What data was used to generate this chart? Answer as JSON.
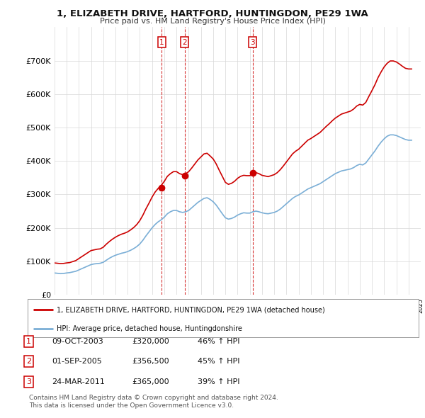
{
  "title": "1, ELIZABETH DRIVE, HARTFORD, HUNTINGDON, PE29 1WA",
  "subtitle": "Price paid vs. HM Land Registry's House Price Index (HPI)",
  "background_color": "#ffffff",
  "grid_color": "#d8d8d8",
  "sale_color": "#cc0000",
  "hpi_color": "#7aaed6",
  "ylim": [
    0,
    800000
  ],
  "yticks": [
    0,
    100000,
    200000,
    300000,
    400000,
    500000,
    600000,
    700000
  ],
  "ytick_labels": [
    "£0",
    "£100K",
    "£200K",
    "£300K",
    "£400K",
    "£500K",
    "£600K",
    "£700K"
  ],
  "sales": [
    {
      "id": 1,
      "date_num": 2003.78,
      "price": 320000,
      "label": "1"
    },
    {
      "id": 2,
      "date_num": 2005.67,
      "price": 356500,
      "label": "2"
    },
    {
      "id": 3,
      "date_num": 2011.23,
      "price": 365000,
      "label": "3"
    }
  ],
  "sale_table": [
    {
      "num": "1",
      "date": "09-OCT-2003",
      "price": "£320,000",
      "pct": "46% ↑ HPI"
    },
    {
      "num": "2",
      "date": "01-SEP-2005",
      "price": "£356,500",
      "pct": "45% ↑ HPI"
    },
    {
      "num": "3",
      "date": "24-MAR-2011",
      "price": "£365,000",
      "pct": "39% ↑ HPI"
    }
  ],
  "legend_line1": "1, ELIZABETH DRIVE, HARTFORD, HUNTINGDON, PE29 1WA (detached house)",
  "legend_line2": "HPI: Average price, detached house, Huntingdonshire",
  "footnote1": "Contains HM Land Registry data © Crown copyright and database right 2024.",
  "footnote2": "This data is licensed under the Open Government Licence v3.0.",
  "hpi_data": {
    "years": [
      1995.0,
      1995.25,
      1995.5,
      1995.75,
      1996.0,
      1996.25,
      1996.5,
      1996.75,
      1997.0,
      1997.25,
      1997.5,
      1997.75,
      1998.0,
      1998.25,
      1998.5,
      1998.75,
      1999.0,
      1999.25,
      1999.5,
      1999.75,
      2000.0,
      2000.25,
      2000.5,
      2000.75,
      2001.0,
      2001.25,
      2001.5,
      2001.75,
      2002.0,
      2002.25,
      2002.5,
      2002.75,
      2003.0,
      2003.25,
      2003.5,
      2003.75,
      2004.0,
      2004.25,
      2004.5,
      2004.75,
      2005.0,
      2005.25,
      2005.5,
      2005.75,
      2006.0,
      2006.25,
      2006.5,
      2006.75,
      2007.0,
      2007.25,
      2007.5,
      2007.75,
      2008.0,
      2008.25,
      2008.5,
      2008.75,
      2009.0,
      2009.25,
      2009.5,
      2009.75,
      2010.0,
      2010.25,
      2010.5,
      2010.75,
      2011.0,
      2011.25,
      2011.5,
      2011.75,
      2012.0,
      2012.25,
      2012.5,
      2012.75,
      2013.0,
      2013.25,
      2013.5,
      2013.75,
      2014.0,
      2014.25,
      2014.5,
      2014.75,
      2015.0,
      2015.25,
      2015.5,
      2015.75,
      2016.0,
      2016.25,
      2016.5,
      2016.75,
      2017.0,
      2017.25,
      2017.5,
      2017.75,
      2018.0,
      2018.25,
      2018.5,
      2018.75,
      2019.0,
      2019.25,
      2019.5,
      2019.75,
      2020.0,
      2020.25,
      2020.5,
      2020.75,
      2021.0,
      2021.25,
      2021.5,
      2021.75,
      2022.0,
      2022.25,
      2022.5,
      2022.75,
      2023.0,
      2023.25,
      2023.5,
      2023.75,
      2024.0,
      2024.25
    ],
    "values": [
      65000,
      64000,
      63000,
      63500,
      65000,
      66000,
      68000,
      70000,
      74000,
      78000,
      82000,
      86000,
      90000,
      92000,
      93000,
      94000,
      97000,
      103000,
      109000,
      114000,
      118000,
      121000,
      124000,
      126000,
      129000,
      133000,
      138000,
      144000,
      152000,
      163000,
      176000,
      188000,
      200000,
      210000,
      218000,
      224000,
      232000,
      242000,
      248000,
      252000,
      252000,
      248000,
      246000,
      248000,
      252000,
      260000,
      268000,
      276000,
      282000,
      288000,
      290000,
      285000,
      278000,
      268000,
      255000,
      242000,
      230000,
      226000,
      228000,
      232000,
      238000,
      242000,
      245000,
      244000,
      244000,
      248000,
      250000,
      248000,
      245000,
      243000,
      242000,
      244000,
      246000,
      250000,
      256000,
      264000,
      272000,
      280000,
      288000,
      294000,
      298000,
      304000,
      310000,
      316000,
      320000,
      324000,
      328000,
      332000,
      338000,
      344000,
      350000,
      356000,
      362000,
      366000,
      370000,
      372000,
      374000,
      376000,
      380000,
      386000,
      390000,
      388000,
      394000,
      406000,
      418000,
      430000,
      444000,
      456000,
      466000,
      474000,
      478000,
      478000,
      476000,
      472000,
      468000,
      464000,
      462000,
      462000
    ]
  },
  "red_data": {
    "years": [
      1995.0,
      1995.25,
      1995.5,
      1995.75,
      1996.0,
      1996.25,
      1996.5,
      1996.75,
      1997.0,
      1997.25,
      1997.5,
      1997.75,
      1998.0,
      1998.25,
      1998.5,
      1998.75,
      1999.0,
      1999.25,
      1999.5,
      1999.75,
      2000.0,
      2000.25,
      2000.5,
      2000.75,
      2001.0,
      2001.25,
      2001.5,
      2001.75,
      2002.0,
      2002.25,
      2002.5,
      2002.75,
      2003.0,
      2003.25,
      2003.5,
      2003.75,
      2004.0,
      2004.25,
      2004.5,
      2004.75,
      2005.0,
      2005.25,
      2005.5,
      2005.75,
      2006.0,
      2006.25,
      2006.5,
      2006.75,
      2007.0,
      2007.25,
      2007.5,
      2007.75,
      2008.0,
      2008.25,
      2008.5,
      2008.75,
      2009.0,
      2009.25,
      2009.5,
      2009.75,
      2010.0,
      2010.25,
      2010.5,
      2010.75,
      2011.0,
      2011.25,
      2011.5,
      2011.75,
      2012.0,
      2012.25,
      2012.5,
      2012.75,
      2013.0,
      2013.25,
      2013.5,
      2013.75,
      2014.0,
      2014.25,
      2014.5,
      2014.75,
      2015.0,
      2015.25,
      2015.5,
      2015.75,
      2016.0,
      2016.25,
      2016.5,
      2016.75,
      2017.0,
      2017.25,
      2017.5,
      2017.75,
      2018.0,
      2018.25,
      2018.5,
      2018.75,
      2019.0,
      2019.25,
      2019.5,
      2019.75,
      2020.0,
      2020.25,
      2020.5,
      2020.75,
      2021.0,
      2021.25,
      2021.5,
      2021.75,
      2022.0,
      2022.25,
      2022.5,
      2022.75,
      2023.0,
      2023.25,
      2023.5,
      2023.75,
      2024.0,
      2024.25
    ],
    "values": [
      95000,
      94000,
      93000,
      93500,
      95000,
      96000,
      99000,
      102000,
      108000,
      114000,
      120000,
      126000,
      132000,
      134000,
      136000,
      137000,
      142000,
      151000,
      159000,
      166000,
      172000,
      177000,
      181000,
      184000,
      188000,
      194000,
      201000,
      210000,
      222000,
      238000,
      257000,
      274000,
      292000,
      307000,
      318000,
      327000,
      339000,
      354000,
      362000,
      368000,
      368000,
      362000,
      359000,
      362000,
      368000,
      379000,
      391000,
      403000,
      412000,
      421000,
      423000,
      415000,
      406000,
      391000,
      372000,
      354000,
      336000,
      330000,
      333000,
      339000,
      348000,
      354000,
      357000,
      356000,
      356000,
      362000,
      365000,
      362000,
      357000,
      355000,
      353000,
      356000,
      359000,
      365000,
      374000,
      385000,
      397000,
      409000,
      421000,
      429000,
      435000,
      444000,
      453000,
      462000,
      467000,
      473000,
      479000,
      485000,
      494000,
      503000,
      511000,
      520000,
      528000,
      534000,
      540000,
      543000,
      546000,
      549000,
      555000,
      564000,
      569000,
      567000,
      575000,
      593000,
      610000,
      628000,
      649000,
      666000,
      681000,
      692000,
      699000,
      699000,
      696000,
      690000,
      683000,
      677000,
      675000,
      675000
    ]
  }
}
